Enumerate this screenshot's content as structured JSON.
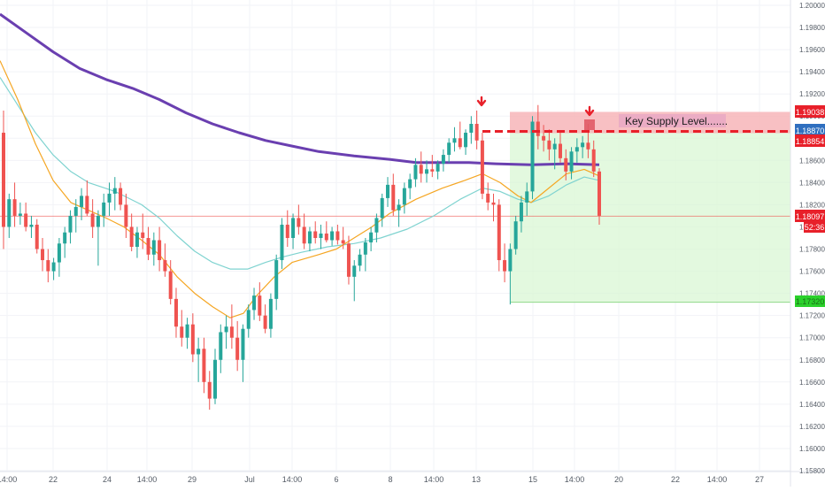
{
  "chart_data": {
    "type": "candlestick",
    "x_ticks": [
      "14:00",
      "22",
      "24",
      "14:00",
      "29",
      "Jul",
      "14:00",
      "6",
      "8",
      "14:00",
      "13",
      "15",
      "14:00",
      "20",
      "22",
      "14:00",
      "27"
    ],
    "y_ticks": [
      "1.20000",
      "1.19800",
      "1.19600",
      "1.19400",
      "1.19200",
      "1.19000",
      "1.18800",
      "1.18600",
      "1.18400",
      "1.18200",
      "1.18000",
      "1.17800",
      "1.17600",
      "1.17400",
      "1.17200",
      "1.17000",
      "1.16800",
      "1.16600",
      "1.16400",
      "1.16200",
      "1.16000",
      "1.15800"
    ],
    "ylim": [
      1.158,
      1.2
    ],
    "price_labels": {
      "supply_top": "1.19038",
      "entry": "1.18870",
      "supply_bottom": "1.18854",
      "last_price": "1.18097",
      "countdown": "52:36",
      "target": "1.17320"
    },
    "annotation": "Key Supply Level.......",
    "levels": {
      "supply_top": 1.19038,
      "entry": 1.1887,
      "supply_bottom": 1.18854,
      "last_price": 1.18097,
      "target": 1.1732
    },
    "candles": [
      [
        1.1885,
        1.1905,
        1.178,
        1.18
      ],
      [
        1.18,
        1.183,
        1.179,
        1.1825
      ],
      [
        1.1825,
        1.184,
        1.18,
        1.181
      ],
      [
        1.181,
        1.1822,
        1.1802,
        1.1812
      ],
      [
        1.1812,
        1.1822,
        1.1796,
        1.18
      ],
      [
        1.18,
        1.181,
        1.179,
        1.1802
      ],
      [
        1.1802,
        1.1807,
        1.1776,
        1.178
      ],
      [
        1.178,
        1.179,
        1.176,
        1.177
      ],
      [
        1.177,
        1.178,
        1.175,
        1.176
      ],
      [
        1.176,
        1.1772,
        1.1752,
        1.1768
      ],
      [
        1.1768,
        1.179,
        1.1755,
        1.1785
      ],
      [
        1.1785,
        1.18,
        1.1772,
        1.1795
      ],
      [
        1.1795,
        1.1815,
        1.1785,
        1.181
      ],
      [
        1.181,
        1.1825,
        1.1795,
        1.1818
      ],
      [
        1.1818,
        1.1835,
        1.1806,
        1.1828
      ],
      [
        1.1828,
        1.1842,
        1.181,
        1.1812
      ],
      [
        1.1812,
        1.1825,
        1.179,
        1.18
      ],
      [
        1.18,
        1.1815,
        1.1765,
        1.181
      ],
      [
        1.181,
        1.183,
        1.18,
        1.1822
      ],
      [
        1.1822,
        1.184,
        1.181,
        1.183
      ],
      [
        1.183,
        1.1845,
        1.1815,
        1.1835
      ],
      [
        1.1835,
        1.184,
        1.1815,
        1.182
      ],
      [
        1.182,
        1.183,
        1.179,
        1.18
      ],
      [
        1.18,
        1.1812,
        1.1778,
        1.1782
      ],
      [
        1.1782,
        1.18,
        1.1772,
        1.1795
      ],
      [
        1.1795,
        1.1812,
        1.178,
        1.179
      ],
      [
        1.179,
        1.18,
        1.177,
        1.1775
      ],
      [
        1.1775,
        1.1795,
        1.1765,
        1.1788
      ],
      [
        1.1788,
        1.18,
        1.176,
        1.177
      ],
      [
        1.177,
        1.1785,
        1.1755,
        1.176
      ],
      [
        1.176,
        1.177,
        1.173,
        1.1735
      ],
      [
        1.1735,
        1.1745,
        1.17,
        1.171
      ],
      [
        1.171,
        1.1725,
        1.1692,
        1.17
      ],
      [
        1.17,
        1.1718,
        1.169,
        1.1712
      ],
      [
        1.1712,
        1.1722,
        1.1678,
        1.1685
      ],
      [
        1.1685,
        1.17,
        1.166,
        1.169
      ],
      [
        1.169,
        1.17,
        1.165,
        1.166
      ],
      [
        1.166,
        1.167,
        1.1635,
        1.1645
      ],
      [
        1.1645,
        1.169,
        1.164,
        1.168
      ],
      [
        1.168,
        1.1712,
        1.1668,
        1.1705
      ],
      [
        1.1705,
        1.172,
        1.169,
        1.171
      ],
      [
        1.171,
        1.173,
        1.169,
        1.17
      ],
      [
        1.17,
        1.1715,
        1.167,
        1.168
      ],
      [
        1.168,
        1.1712,
        1.166,
        1.1708
      ],
      [
        1.1708,
        1.173,
        1.17,
        1.1725
      ],
      [
        1.1725,
        1.1745,
        1.1716,
        1.1738
      ],
      [
        1.1738,
        1.175,
        1.1715,
        1.172
      ],
      [
        1.172,
        1.173,
        1.1704,
        1.1708
      ],
      [
        1.1708,
        1.174,
        1.17,
        1.1735
      ],
      [
        1.1735,
        1.1775,
        1.1725,
        1.177
      ],
      [
        1.177,
        1.1808,
        1.1762,
        1.1802
      ],
      [
        1.1802,
        1.1815,
        1.1782,
        1.179
      ],
      [
        1.179,
        1.1812,
        1.178,
        1.1808
      ],
      [
        1.1808,
        1.182,
        1.1793,
        1.18
      ],
      [
        1.18,
        1.1812,
        1.178,
        1.1785
      ],
      [
        1.1785,
        1.18,
        1.1778,
        1.1796
      ],
      [
        1.1796,
        1.1805,
        1.1785,
        1.179
      ],
      [
        1.179,
        1.1802,
        1.178,
        1.1794
      ],
      [
        1.1794,
        1.1805,
        1.1786,
        1.1788
      ],
      [
        1.1788,
        1.18,
        1.1783,
        1.1796
      ],
      [
        1.1796,
        1.1802,
        1.1784,
        1.1788
      ],
      [
        1.1788,
        1.18,
        1.178,
        1.1785
      ],
      [
        1.1785,
        1.1792,
        1.1748,
        1.1755
      ],
      [
        1.1755,
        1.177,
        1.1733,
        1.1765
      ],
      [
        1.1765,
        1.178,
        1.176,
        1.1775
      ],
      [
        1.1775,
        1.179,
        1.176,
        1.1786
      ],
      [
        1.1786,
        1.18,
        1.1778,
        1.1795
      ],
      [
        1.1795,
        1.1812,
        1.1786,
        1.1808
      ],
      [
        1.1808,
        1.183,
        1.18,
        1.1826
      ],
      [
        1.1826,
        1.1845,
        1.1818,
        1.1838
      ],
      [
        1.1838,
        1.1848,
        1.181,
        1.1815
      ],
      [
        1.1815,
        1.1825,
        1.18,
        1.182
      ],
      [
        1.182,
        1.184,
        1.1812,
        1.1835
      ],
      [
        1.1835,
        1.1848,
        1.1825,
        1.1843
      ],
      [
        1.1843,
        1.1862,
        1.1836,
        1.1856
      ],
      [
        1.1856,
        1.1868,
        1.184,
        1.1848
      ],
      [
        1.1848,
        1.186,
        1.184,
        1.1852
      ],
      [
        1.1852,
        1.1865,
        1.1845,
        1.185
      ],
      [
        1.185,
        1.186,
        1.1843,
        1.1857
      ],
      [
        1.1857,
        1.187,
        1.185,
        1.1865
      ],
      [
        1.1865,
        1.188,
        1.1858,
        1.1876
      ],
      [
        1.1876,
        1.189,
        1.1868,
        1.188
      ],
      [
        1.188,
        1.1895,
        1.187,
        1.1872
      ],
      [
        1.1872,
        1.1888,
        1.1865,
        1.1885
      ],
      [
        1.1885,
        1.19,
        1.1875,
        1.1893
      ],
      [
        1.1893,
        1.1905,
        1.187,
        1.1878
      ],
      [
        1.1878,
        1.1885,
        1.1825,
        1.183
      ],
      [
        1.183,
        1.184,
        1.1815,
        1.1822
      ],
      [
        1.1822,
        1.183,
        1.1805,
        1.182
      ],
      [
        1.182,
        1.1825,
        1.176,
        1.177
      ],
      [
        1.177,
        1.1785,
        1.175,
        1.176
      ],
      [
        1.176,
        1.1785,
        1.173,
        1.178
      ],
      [
        1.178,
        1.181,
        1.1775,
        1.1805
      ],
      [
        1.1805,
        1.1828,
        1.1795,
        1.1822
      ],
      [
        1.1822,
        1.184,
        1.181,
        1.1832
      ],
      [
        1.1832,
        1.19,
        1.1825,
        1.1895
      ],
      [
        1.1895,
        1.191,
        1.187,
        1.1882
      ],
      [
        1.1882,
        1.1892,
        1.1868,
        1.1878
      ],
      [
        1.1878,
        1.1888,
        1.186,
        1.187
      ],
      [
        1.187,
        1.188,
        1.1852,
        1.1875
      ],
      [
        1.1875,
        1.1885,
        1.1858,
        1.1862
      ],
      [
        1.1862,
        1.187,
        1.1842,
        1.185
      ],
      [
        1.185,
        1.1872,
        1.1843,
        1.1868
      ],
      [
        1.1868,
        1.188,
        1.1858,
        1.1872
      ],
      [
        1.1872,
        1.1882,
        1.1862,
        1.1876
      ],
      [
        1.1876,
        1.1893,
        1.1862,
        1.187
      ],
      [
        1.187,
        1.1878,
        1.1845,
        1.185
      ],
      [
        1.185,
        1.1853,
        1.1802,
        1.181
      ]
    ],
    "ma_slow": [
      [
        0,
        1.1992
      ],
      [
        30,
        1.1975
      ],
      [
        60,
        1.1958
      ],
      [
        90,
        1.1943
      ],
      [
        120,
        1.1933
      ],
      [
        150,
        1.1925
      ],
      [
        180,
        1.1915
      ],
      [
        210,
        1.1903
      ],
      [
        240,
        1.1893
      ],
      [
        270,
        1.1885
      ],
      [
        300,
        1.1878
      ],
      [
        330,
        1.1873
      ],
      [
        360,
        1.1868
      ],
      [
        400,
        1.1864
      ],
      [
        440,
        1.1861
      ],
      [
        470,
        1.1858
      ],
      [
        500,
        1.1858
      ],
      [
        530,
        1.1858
      ],
      [
        560,
        1.1857
      ],
      [
        600,
        1.1856
      ],
      [
        640,
        1.1857
      ],
      [
        677,
        1.1856
      ]
    ],
    "ma_mid": [
      [
        0,
        1.1935
      ],
      [
        20,
        1.191
      ],
      [
        40,
        1.1885
      ],
      [
        60,
        1.1865
      ],
      [
        80,
        1.185
      ],
      [
        100,
        1.184
      ],
      [
        130,
        1.1832
      ],
      [
        160,
        1.182
      ],
      [
        180,
        1.1808
      ],
      [
        200,
        1.1792
      ],
      [
        220,
        1.1778
      ],
      [
        240,
        1.1768
      ],
      [
        260,
        1.1762
      ],
      [
        280,
        1.1762
      ],
      [
        300,
        1.1768
      ],
      [
        320,
        1.1773
      ],
      [
        340,
        1.1777
      ],
      [
        370,
        1.1782
      ],
      [
        400,
        1.1785
      ],
      [
        430,
        1.179
      ],
      [
        460,
        1.1798
      ],
      [
        490,
        1.181
      ],
      [
        520,
        1.1825
      ],
      [
        545,
        1.1835
      ],
      [
        565,
        1.1832
      ],
      [
        585,
        1.1825
      ],
      [
        600,
        1.1822
      ],
      [
        620,
        1.1828
      ],
      [
        640,
        1.1838
      ],
      [
        660,
        1.1845
      ],
      [
        677,
        1.1842
      ]
    ],
    "ma_fast": [
      [
        0,
        1.195
      ],
      [
        20,
        1.1915
      ],
      [
        40,
        1.1875
      ],
      [
        60,
        1.1842
      ],
      [
        80,
        1.1822
      ],
      [
        100,
        1.1815
      ],
      [
        120,
        1.1808
      ],
      [
        140,
        1.18
      ],
      [
        160,
        1.1788
      ],
      [
        180,
        1.1775
      ],
      [
        200,
        1.1755
      ],
      [
        220,
        1.174
      ],
      [
        240,
        1.1728
      ],
      [
        260,
        1.1718
      ],
      [
        275,
        1.1722
      ],
      [
        290,
        1.1738
      ],
      [
        310,
        1.1755
      ],
      [
        330,
        1.1768
      ],
      [
        360,
        1.1775
      ],
      [
        380,
        1.178
      ],
      [
        400,
        1.179
      ],
      [
        420,
        1.18
      ],
      [
        440,
        1.1812
      ],
      [
        470,
        1.1825
      ],
      [
        500,
        1.1835
      ],
      [
        525,
        1.1842
      ],
      [
        545,
        1.1848
      ],
      [
        565,
        1.184
      ],
      [
        585,
        1.1828
      ],
      [
        600,
        1.1822
      ],
      [
        620,
        1.1835
      ],
      [
        640,
        1.1848
      ],
      [
        660,
        1.1852
      ],
      [
        677,
        1.1846
      ]
    ],
    "colors": {
      "up": "#26a69a",
      "down": "#ef5350",
      "ma_slow": "#6a3fb0",
      "ma_mid": "#7fd3d0",
      "ma_fast": "#f5a623",
      "supply_zone": "#f7b5b8",
      "target_zone": "#d9f7d4",
      "label_red": "#e8202a",
      "label_blue": "#2f6fbf",
      "label_green": "#2bd12b"
    }
  }
}
